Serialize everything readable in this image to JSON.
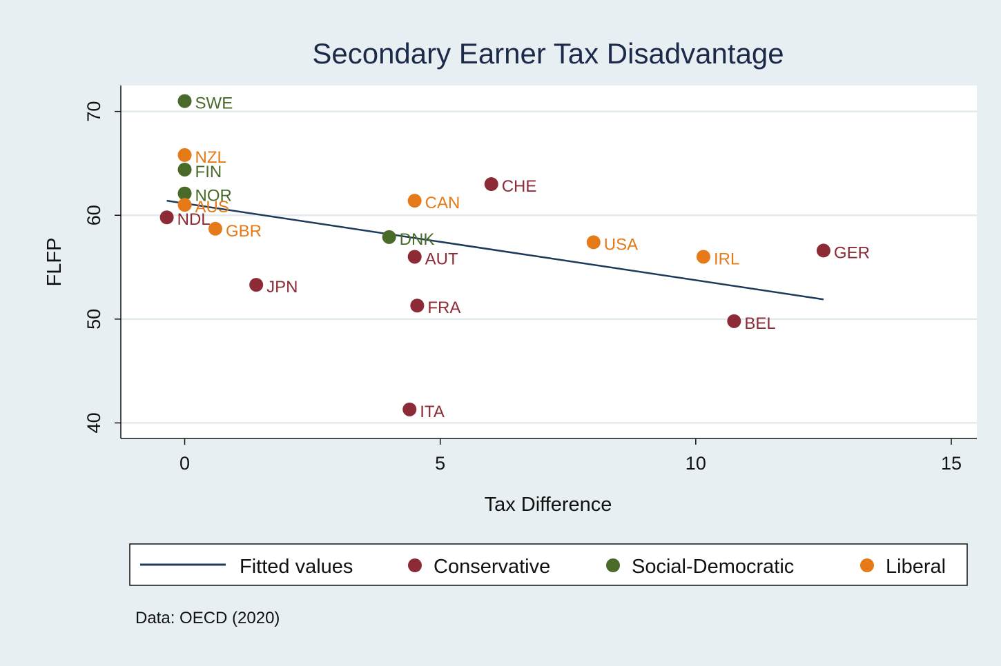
{
  "chart_data": {
    "type": "scatter",
    "title": "Secondary Earner Tax Disadvantage",
    "xlabel": "Tax Difference",
    "ylabel": "FLFP",
    "xlim": [
      -1.25,
      15.5
    ],
    "ylim": [
      38.5,
      72.5
    ],
    "x_ticks": [
      "0",
      "5",
      "10",
      "15"
    ],
    "y_ticks": [
      "40",
      "50",
      "60",
      "70"
    ],
    "grid": "horizontal",
    "legend_position": "bottom",
    "colors": {
      "Conservative": "#8c2a36",
      "Social-Democratic": "#4a6a2a",
      "Liberal": "#e67a18",
      "Fitted values": "#1c3a5a"
    },
    "series": [
      {
        "name": "Conservative",
        "points": [
          {
            "label": "CHE",
            "x": 6.0,
            "y": 63.0
          },
          {
            "label": "NDL",
            "x": -0.35,
            "y": 59.8
          },
          {
            "label": "AUT",
            "x": 4.5,
            "y": 56.0
          },
          {
            "label": "GER",
            "x": 12.5,
            "y": 56.6
          },
          {
            "label": "JPN",
            "x": 1.4,
            "y": 53.3
          },
          {
            "label": "FRA",
            "x": 4.55,
            "y": 51.3
          },
          {
            "label": "BEL",
            "x": 10.75,
            "y": 49.8
          },
          {
            "label": "ITA",
            "x": 4.4,
            "y": 41.3
          }
        ]
      },
      {
        "name": "Social-Democratic",
        "points": [
          {
            "label": "SWE",
            "x": 0.0,
            "y": 71.0
          },
          {
            "label": "FIN",
            "x": 0.0,
            "y": 64.4
          },
          {
            "label": "NOR",
            "x": 0.0,
            "y": 62.1
          },
          {
            "label": "DNK",
            "x": 4.0,
            "y": 57.9
          }
        ]
      },
      {
        "name": "Liberal",
        "points": [
          {
            "label": "NZL",
            "x": 0.0,
            "y": 65.8
          },
          {
            "label": "AUS",
            "x": 0.0,
            "y": 61.0
          },
          {
            "label": "GBR",
            "x": 0.6,
            "y": 58.7
          },
          {
            "label": "CAN",
            "x": 4.5,
            "y": 61.4
          },
          {
            "label": "USA",
            "x": 8.0,
            "y": 57.4
          },
          {
            "label": "IRL",
            "x": 10.15,
            "y": 56.0
          }
        ]
      }
    ],
    "fitted_line": {
      "name": "Fitted values",
      "x": [
        -0.35,
        12.5
      ],
      "y": [
        61.4,
        51.9
      ]
    },
    "legend_entries": [
      "Fitted values",
      "Conservative",
      "Social-Democratic",
      "Liberal"
    ],
    "note": "Data: OECD (2020)"
  }
}
